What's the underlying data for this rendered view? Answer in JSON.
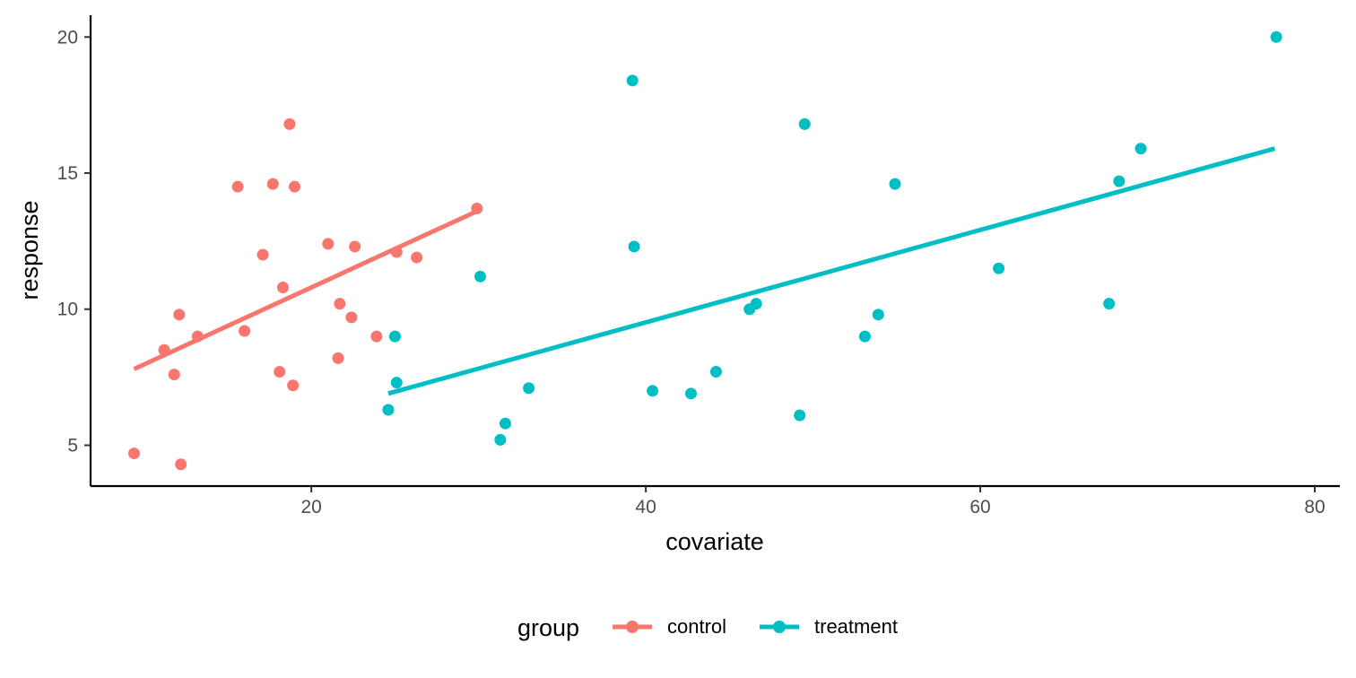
{
  "chart_data": {
    "type": "scatter",
    "xlabel": "covariate",
    "ylabel": "response",
    "xlim": [
      6.8,
      81.5
    ],
    "ylim": [
      3.5,
      20.8
    ],
    "x_ticks": [
      20,
      40,
      60,
      80
    ],
    "x_tick_labels": [
      "20",
      "40",
      "60",
      "80"
    ],
    "y_ticks": [
      5,
      10,
      15,
      20
    ],
    "y_tick_labels": [
      "5",
      "10",
      "15",
      "20"
    ],
    "grid": false,
    "legend": {
      "title": "group",
      "position": "bottom"
    },
    "series": [
      {
        "name": "control",
        "color": "#F8766D",
        "points": [
          [
            9.4,
            4.7
          ],
          [
            12.2,
            4.3
          ],
          [
            11.2,
            8.5
          ],
          [
            11.8,
            7.6
          ],
          [
            12.1,
            9.8
          ],
          [
            13.2,
            9.0
          ],
          [
            15.6,
            14.5
          ],
          [
            16.0,
            9.2
          ],
          [
            17.1,
            12.0
          ],
          [
            17.7,
            14.6
          ],
          [
            18.1,
            7.7
          ],
          [
            18.3,
            10.8
          ],
          [
            18.7,
            16.8
          ],
          [
            18.9,
            7.2
          ],
          [
            19.0,
            14.5
          ],
          [
            21.0,
            12.4
          ],
          [
            21.6,
            8.2
          ],
          [
            21.7,
            10.2
          ],
          [
            22.4,
            9.7
          ],
          [
            22.6,
            12.3
          ],
          [
            23.9,
            9.0
          ],
          [
            25.1,
            12.1
          ],
          [
            26.3,
            11.9
          ],
          [
            29.9,
            13.7
          ]
        ],
        "trend": [
          [
            9.4,
            7.8
          ],
          [
            29.9,
            13.6
          ]
        ]
      },
      {
        "name": "treatment",
        "color": "#00BFC4",
        "points": [
          [
            24.6,
            6.3
          ],
          [
            25.0,
            9.0
          ],
          [
            25.1,
            7.3
          ],
          [
            30.1,
            11.2
          ],
          [
            31.3,
            5.2
          ],
          [
            31.6,
            5.8
          ],
          [
            33.0,
            7.1
          ],
          [
            39.2,
            18.4
          ],
          [
            39.3,
            12.3
          ],
          [
            40.4,
            7.0
          ],
          [
            42.7,
            6.9
          ],
          [
            44.2,
            7.7
          ],
          [
            46.2,
            10.0
          ],
          [
            46.6,
            10.2
          ],
          [
            49.2,
            6.1
          ],
          [
            49.5,
            16.8
          ],
          [
            53.1,
            9.0
          ],
          [
            53.9,
            9.8
          ],
          [
            54.9,
            14.6
          ],
          [
            61.1,
            11.5
          ],
          [
            67.7,
            10.2
          ],
          [
            68.3,
            14.7
          ],
          [
            69.6,
            15.9
          ],
          [
            77.7,
            20.0
          ]
        ],
        "trend": [
          [
            24.6,
            6.9
          ],
          [
            77.6,
            15.9
          ]
        ]
      }
    ]
  }
}
